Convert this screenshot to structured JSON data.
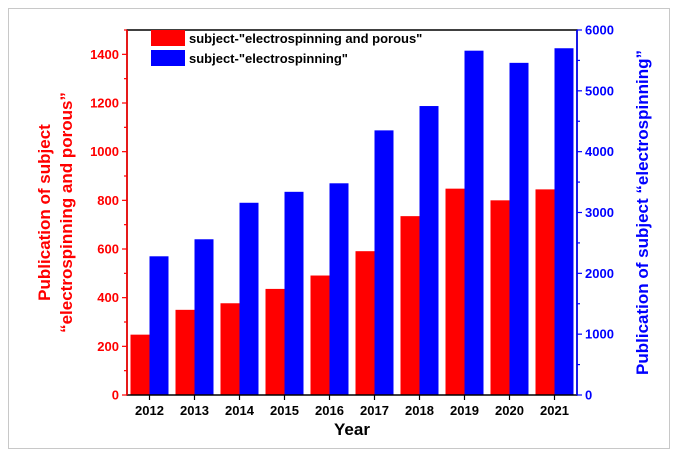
{
  "chart_data": {
    "type": "bar",
    "categories": [
      "2012",
      "2013",
      "2014",
      "2015",
      "2016",
      "2017",
      "2018",
      "2019",
      "2020",
      "2021"
    ],
    "series": [
      {
        "name": "subject-\"electrospinning and porous\"",
        "axis": "left",
        "color": "#ff0000",
        "values": [
          248,
          350,
          377,
          436,
          491,
          591,
          735,
          848,
          800,
          845
        ]
      },
      {
        "name": "subject-\"electrospinning\"",
        "axis": "right",
        "color": "#0000ff",
        "values": [
          2280,
          2560,
          3160,
          3340,
          3480,
          4350,
          4750,
          5660,
          5460,
          5700
        ]
      }
    ],
    "xlabel": "Year",
    "ylabel_left": [
      "Publication of subject",
      "“electrospinning and porous”"
    ],
    "ylabel_right": "Publication of subject “electrospinning”",
    "ylim_left": [
      0,
      1500
    ],
    "ylim_right": [
      0,
      6000
    ],
    "yticks_left": [
      0,
      200,
      400,
      600,
      800,
      1000,
      1200,
      1400
    ],
    "yticks_right": [
      0,
      1000,
      2000,
      3000,
      4000,
      5000,
      6000
    ],
    "left_axis_color": "#ff0000",
    "right_axis_color": "#0000ff",
    "legend_position": "top-left",
    "grid": false
  }
}
